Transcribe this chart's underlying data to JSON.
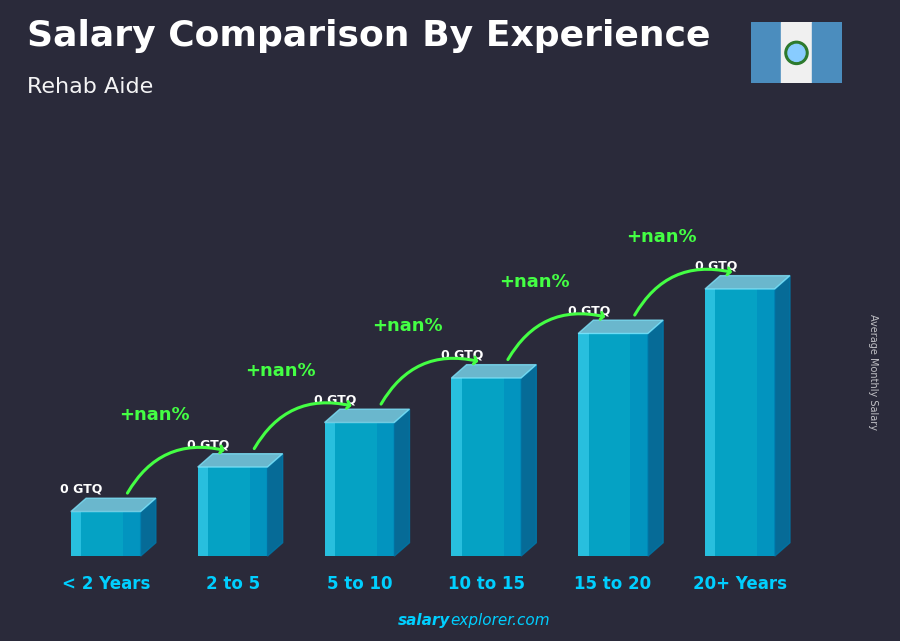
{
  "title": "Salary Comparison By Experience",
  "subtitle": "Rehab Aide",
  "categories": [
    "< 2 Years",
    "2 to 5",
    "5 to 10",
    "10 to 15",
    "15 to 20",
    "20+ Years"
  ],
  "salary_labels": [
    "0 GTQ",
    "0 GTQ",
    "0 GTQ",
    "0 GTQ",
    "0 GTQ",
    "0 GTQ"
  ],
  "pct_labels": [
    "+nan%",
    "+nan%",
    "+nan%",
    "+nan%",
    "+nan%"
  ],
  "ylabel": "Average Monthly Salary",
  "bg_color": "#2a2a3a",
  "title_fontsize": 26,
  "subtitle_fontsize": 16,
  "tick_label_color": "#00cfff",
  "salary_label_color": "#ffffff",
  "pct_label_color": "#44ff44",
  "watermark_bold": "salary",
  "watermark_rest": "explorer.com",
  "watermark_color": "#00cfff",
  "bar_face_color": "#00b4d8",
  "bar_top_color": "#80e8ff",
  "bar_side_color": "#0077a8",
  "bar_heights": [
    1,
    2,
    3,
    4,
    5,
    6
  ],
  "arrow_color": "#44ff44"
}
